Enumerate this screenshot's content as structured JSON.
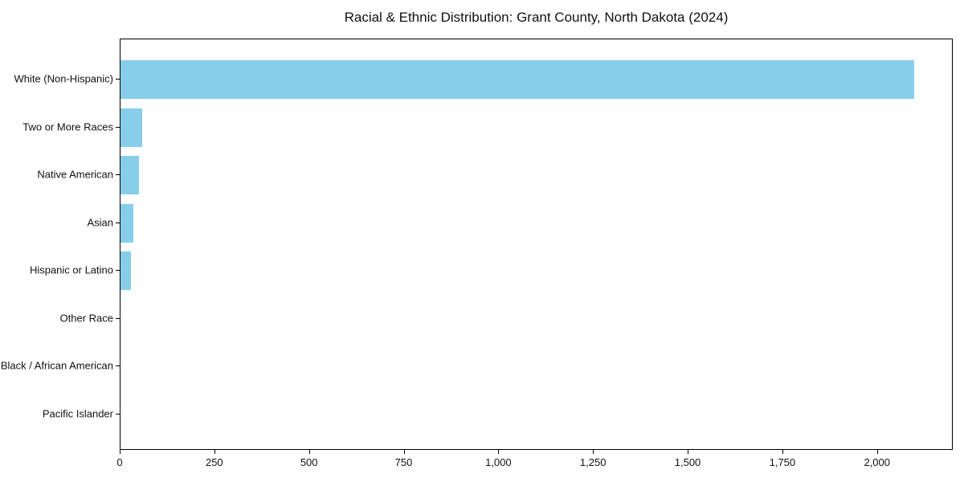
{
  "title": "Racial & Ethnic Distribution: Grant County, North Dakota (2024)",
  "chart_data": {
    "type": "bar",
    "orientation": "horizontal",
    "title": "Racial & Ethnic Distribution: Grant County, North Dakota (2024)",
    "categories": [
      "White (Non-Hispanic)",
      "Two or More Races",
      "Native American",
      "Asian",
      "Hispanic or Latino",
      "Other Race",
      "Black / African American",
      "Pacific Islander"
    ],
    "values": [
      2095,
      57,
      48,
      34,
      27,
      0,
      0,
      0
    ],
    "xlabel": "",
    "ylabel": "",
    "xlim": [
      0,
      2200
    ],
    "x_ticks": [
      0,
      250,
      500,
      750,
      1000,
      1250,
      1500,
      1750,
      2000
    ],
    "x_tick_labels": [
      "0",
      "250",
      "500",
      "750",
      "1,000",
      "1,250",
      "1,500",
      "1,750",
      "2,000"
    ],
    "bar_color": "#87CEEB",
    "grid": false,
    "legend": null
  }
}
